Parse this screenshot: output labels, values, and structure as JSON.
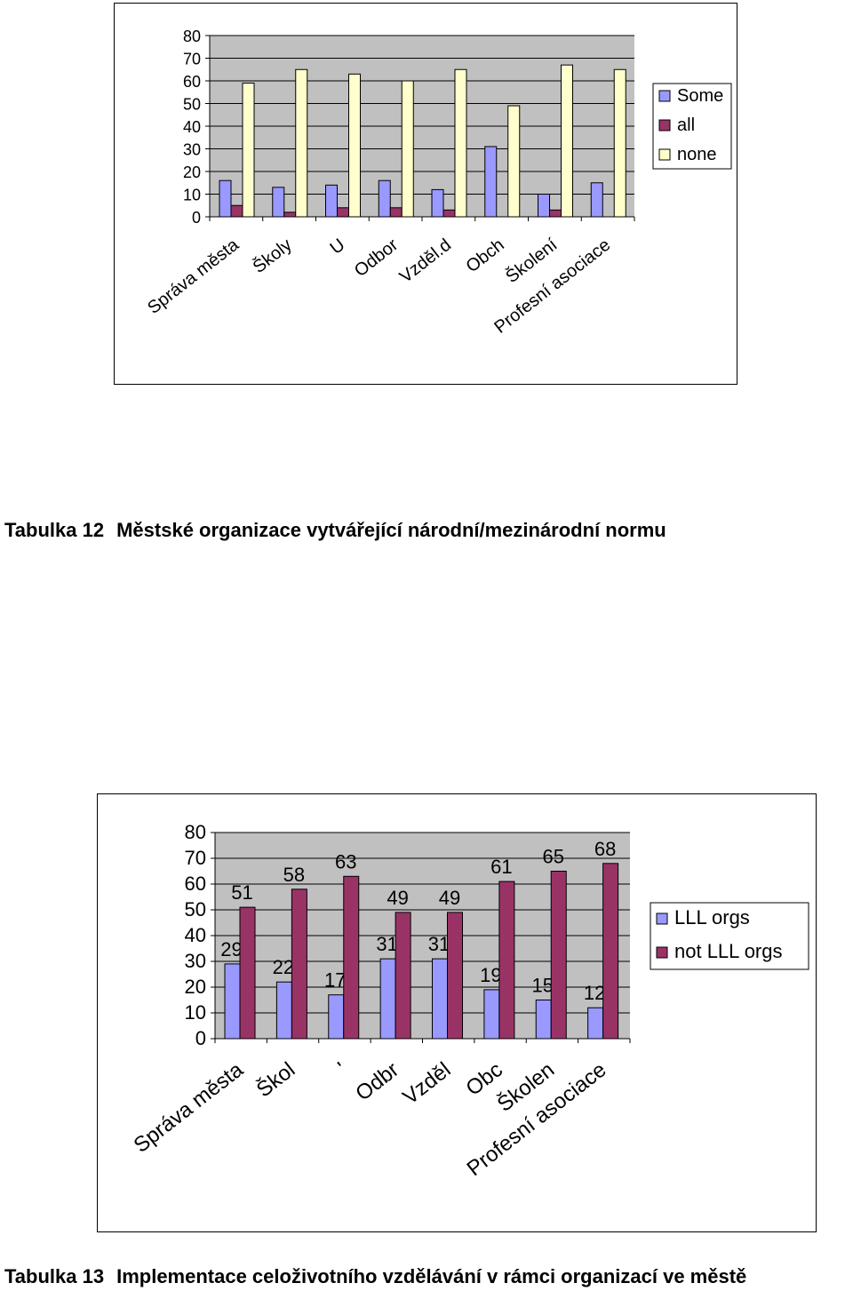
{
  "captions": {
    "t12_num": "Tabulka 12",
    "t12_text": "Městské organizace vytvářející národní/mezinárodní normu",
    "t13_num": "Tabulka 13",
    "t13_text": "Implementace celoživotního vzdělávání v rámci organizací ve městě"
  },
  "chart_data": [
    {
      "type": "bar",
      "title": "",
      "xlabel": "",
      "ylabel": "",
      "ylim": [
        0,
        80
      ],
      "yticks": [
        0,
        10,
        20,
        30,
        40,
        50,
        60,
        70,
        80
      ],
      "grid": true,
      "legend_position": "right",
      "categories": [
        "Správa města",
        "Školy",
        "U",
        "Odbor",
        "Vzděl.d",
        "Obch",
        "Školení",
        "Profesní asociace"
      ],
      "series": [
        {
          "name": "Some",
          "color": "#9999ff",
          "values": [
            16,
            13,
            14,
            16,
            12,
            31,
            10,
            15
          ]
        },
        {
          "name": "all",
          "color": "#993366",
          "values": [
            5,
            2,
            4,
            4,
            3,
            0,
            3,
            0
          ]
        },
        {
          "name": "none",
          "color": "#ffffcc",
          "values": [
            59,
            65,
            63,
            60,
            65,
            49,
            67,
            65
          ]
        }
      ]
    },
    {
      "type": "bar",
      "title": "",
      "xlabel": "",
      "ylabel": "",
      "ylim": [
        0,
        80
      ],
      "yticks": [
        0,
        10,
        20,
        30,
        40,
        50,
        60,
        70,
        80
      ],
      "grid": true,
      "legend_position": "right",
      "data_labels": true,
      "categories": [
        "Správa města",
        "Škol",
        "'",
        "Odbr",
        "Vzděl",
        "Obc",
        "Školen",
        "Profesní asociace"
      ],
      "series": [
        {
          "name": "LLL orgs",
          "color": "#9999ff",
          "values": [
            29,
            22,
            17,
            31,
            31,
            19,
            15,
            12
          ]
        },
        {
          "name": "not LLL orgs",
          "color": "#993366",
          "values": [
            51,
            58,
            63,
            49,
            49,
            61,
            65,
            68
          ]
        }
      ]
    }
  ]
}
